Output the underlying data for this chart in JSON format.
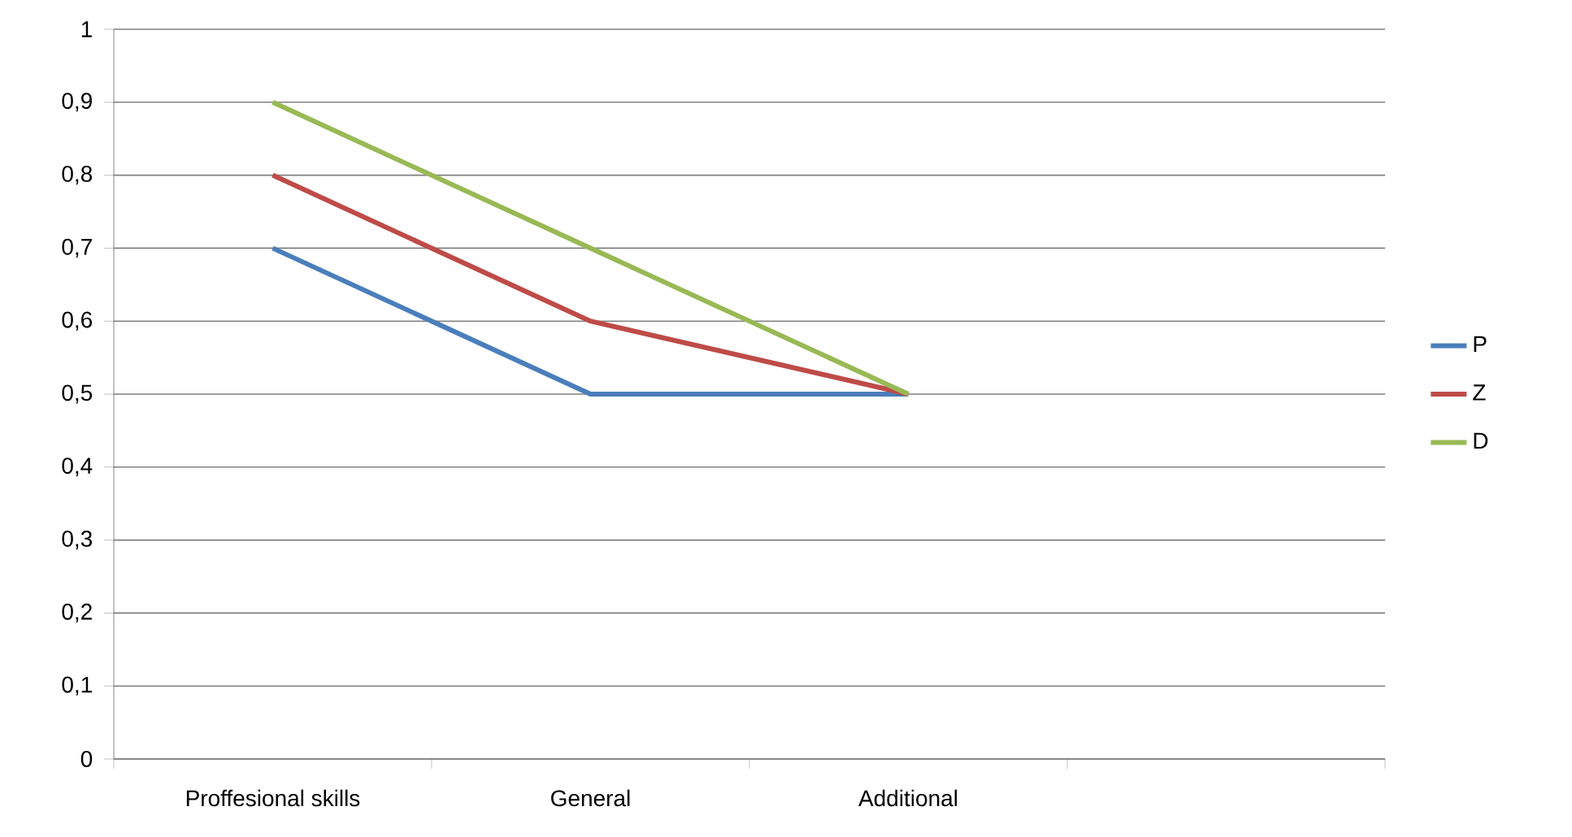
{
  "chart_data": {
    "type": "line",
    "categories": [
      "Proffesional skills",
      "General",
      "Additional",
      null
    ],
    "series": [
      {
        "name": "P",
        "color": "#4a7ebb",
        "values": [
          0.7,
          0.5,
          0.5,
          null
        ]
      },
      {
        "name": "Z",
        "color": "#be4b48",
        "values": [
          0.8,
          0.6,
          0.5,
          null
        ]
      },
      {
        "name": "D",
        "color": "#98b954",
        "values": [
          0.9,
          0.7,
          0.5,
          null
        ]
      }
    ],
    "ylim": [
      0,
      1
    ],
    "yticks": [
      0,
      {
        "value": 0.1,
        "label": "0,1"
      },
      {
        "value": 0.2,
        "label": "0,2"
      },
      {
        "value": 0.3,
        "label": "0,3"
      },
      {
        "value": 0.4,
        "label": "0,4"
      },
      {
        "value": 0.5,
        "label": "0,5"
      },
      {
        "value": 0.6,
        "label": "0,6"
      },
      {
        "value": 0.7,
        "label": "0,7"
      },
      {
        "value": 0.8,
        "label": "0,8"
      },
      {
        "value": 0.9,
        "label": "0,9"
      },
      1
    ],
    "grid": "y",
    "legend": "right",
    "marker": "none",
    "line_style": "solid"
  }
}
